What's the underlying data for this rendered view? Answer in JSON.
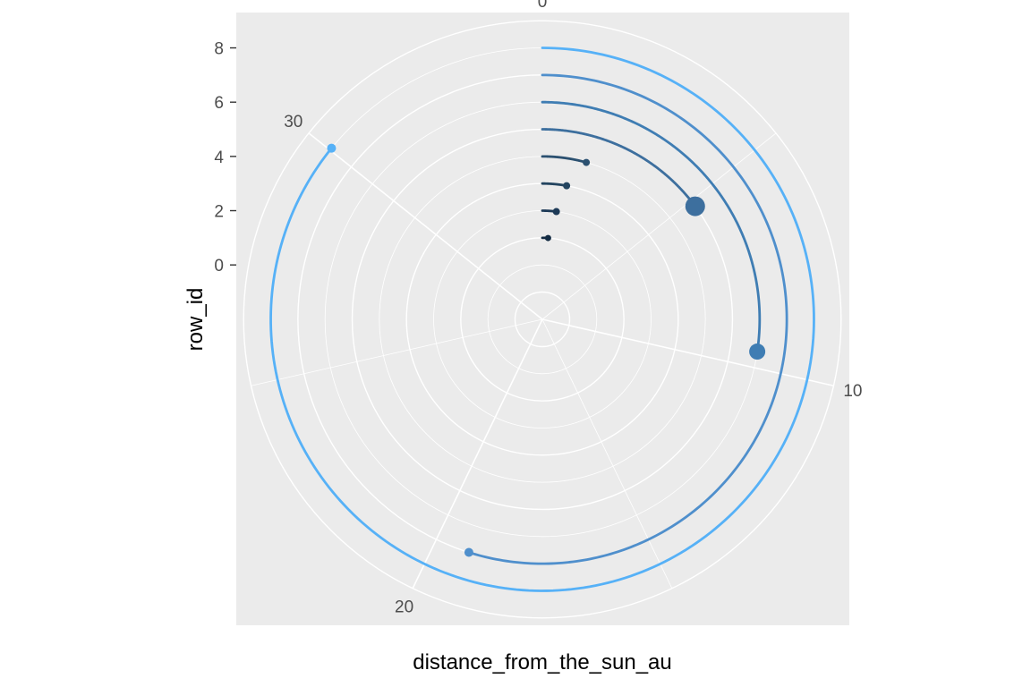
{
  "chart_data": {
    "type": "polar-line",
    "title": "",
    "xlabel": "distance_from_the_sun_au",
    "ylabel": "row_id",
    "theta_range": [
      0,
      35
    ],
    "theta_ticks": [
      "0",
      "10",
      "20",
      "30"
    ],
    "r_ticks": [
      "0",
      "2",
      "4",
      "6",
      "8"
    ],
    "r_range": [
      -1,
      9
    ],
    "grid": true,
    "series": [
      {
        "row_id": 1,
        "distance_from_the_sun_au": 0.39,
        "point_size": 5,
        "color": "#132B43"
      },
      {
        "row_id": 2,
        "distance_from_the_sun_au": 0.72,
        "point_size": 6,
        "color": "#1d3a57"
      },
      {
        "row_id": 3,
        "distance_from_the_sun_au": 1.0,
        "point_size": 6,
        "color": "#23445f"
      },
      {
        "row_id": 4,
        "distance_from_the_sun_au": 1.52,
        "point_size": 6,
        "color": "#2b5070"
      },
      {
        "row_id": 5,
        "distance_from_the_sun_au": 5.2,
        "point_size": 20,
        "color": "#3d6f9e"
      },
      {
        "row_id": 6,
        "distance_from_the_sun_au": 9.58,
        "point_size": 16,
        "color": "#3f7db3"
      },
      {
        "row_id": 7,
        "distance_from_the_sun_au": 19.2,
        "point_size": 8,
        "color": "#4f8fcc"
      },
      {
        "row_id": 8,
        "distance_from_the_sun_au": 30.05,
        "point_size": 8,
        "color": "#56B1F7"
      }
    ]
  }
}
